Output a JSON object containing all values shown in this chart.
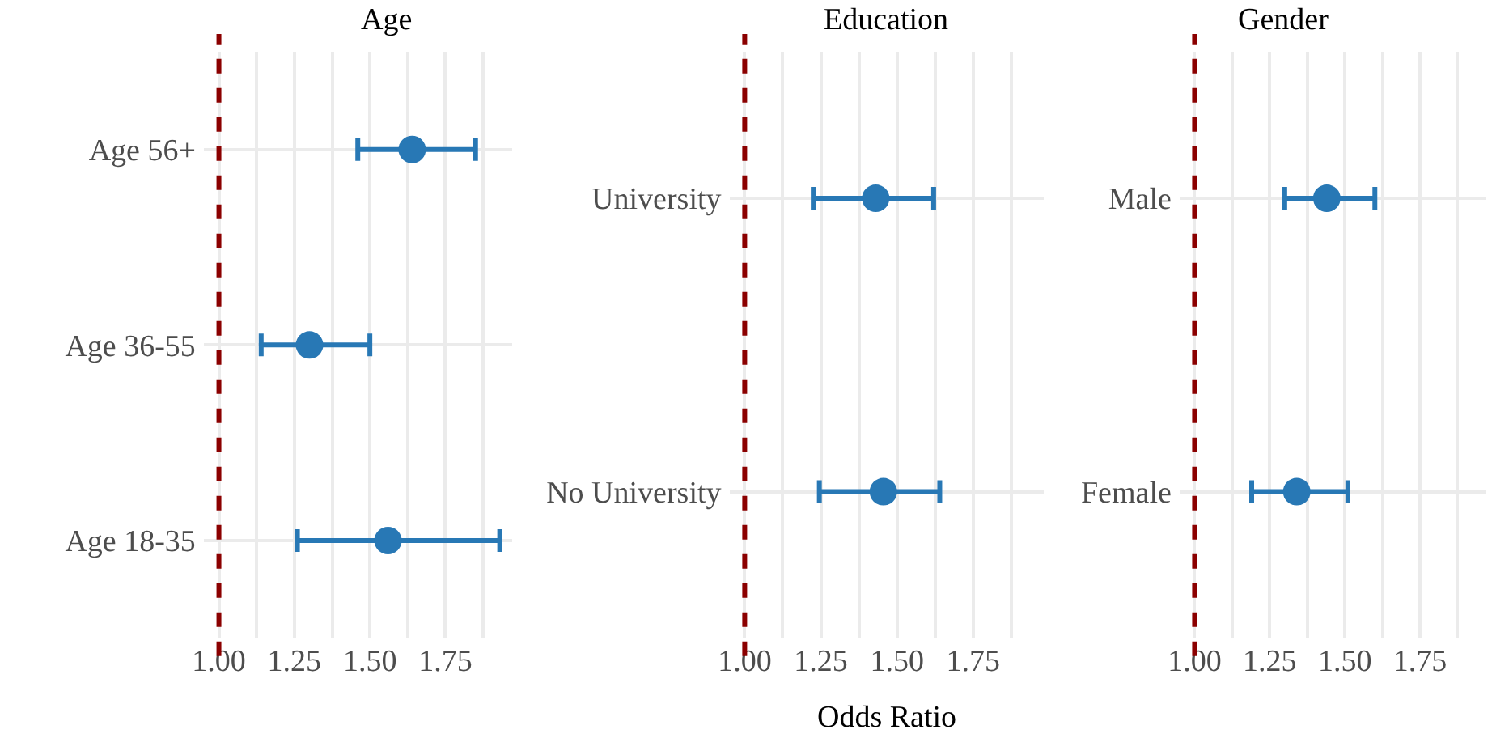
{
  "chart_data": [
    {
      "type": "scatter",
      "title": "Age",
      "orientation": "horizontal",
      "categories": [
        "Age 56+",
        "Age 36-55",
        "Age 18-35"
      ],
      "marker": "circle",
      "grid": true,
      "series": [
        {
          "color": "#2878b5",
          "values": [
            1.64,
            1.3,
            1.56
          ],
          "errors": [
            [
              1.46,
              1.85
            ],
            [
              1.14,
              1.5
            ],
            [
              1.26,
              1.93
            ]
          ]
        }
      ],
      "xlim": [
        0.95,
        1.97
      ],
      "xticks": [
        {
          "value": 1,
          "label": "1.00"
        },
        {
          "value": 1.125,
          "label": null
        },
        {
          "value": 1.25,
          "label": "1.25"
        },
        {
          "value": 1.375,
          "label": null
        },
        {
          "value": 1.5,
          "label": "1.50"
        },
        {
          "value": 1.625,
          "label": null
        },
        {
          "value": 1.75,
          "label": "1.75"
        },
        {
          "value": 1.875,
          "label": null
        }
      ],
      "ref_lines": [
        {
          "axis": "x",
          "value": 1,
          "color": "#8b0000",
          "line_style": "dashed"
        }
      ]
    },
    {
      "type": "scatter",
      "title": "Education",
      "xlabel": "Odds Ratio",
      "orientation": "horizontal",
      "categories": [
        "University",
        "No University"
      ],
      "marker": "circle",
      "grid": true,
      "series": [
        {
          "color": "#2878b5",
          "values": [
            1.43,
            1.455
          ],
          "errors": [
            [
              1.225,
              1.62
            ],
            [
              1.245,
              1.64
            ]
          ]
        }
      ],
      "xlim": [
        0.95,
        1.98
      ],
      "xticks": [
        {
          "value": 1,
          "label": "1.00"
        },
        {
          "value": 1.125,
          "label": null
        },
        {
          "value": 1.25,
          "label": "1.25"
        },
        {
          "value": 1.375,
          "label": null
        },
        {
          "value": 1.5,
          "label": "1.50"
        },
        {
          "value": 1.625,
          "label": null
        },
        {
          "value": 1.75,
          "label": "1.75"
        },
        {
          "value": 1.875,
          "label": null
        }
      ],
      "ref_lines": [
        {
          "axis": "x",
          "value": 1,
          "color": "#8b0000",
          "line_style": "dashed"
        }
      ]
    },
    {
      "type": "scatter",
      "title": "Gender",
      "orientation": "horizontal",
      "categories": [
        "Male",
        "Female"
      ],
      "marker": "circle",
      "grid": true,
      "series": [
        {
          "color": "#2878b5",
          "values": [
            1.44,
            1.34
          ],
          "errors": [
            [
              1.3,
              1.6
            ],
            [
              1.19,
              1.51
            ]
          ]
        }
      ],
      "xlim": [
        0.95,
        1.97
      ],
      "xticks": [
        {
          "value": 1,
          "label": "1.00"
        },
        {
          "value": 1.125,
          "label": null
        },
        {
          "value": 1.25,
          "label": "1.25"
        },
        {
          "value": 1.375,
          "label": null
        },
        {
          "value": 1.5,
          "label": "1.50"
        },
        {
          "value": 1.625,
          "label": null
        },
        {
          "value": 1.75,
          "label": "1.75"
        },
        {
          "value": 1.875,
          "label": null
        }
      ],
      "ref_lines": [
        {
          "axis": "x",
          "value": 1,
          "color": "#8b0000",
          "line_style": "dashed"
        }
      ]
    }
  ]
}
